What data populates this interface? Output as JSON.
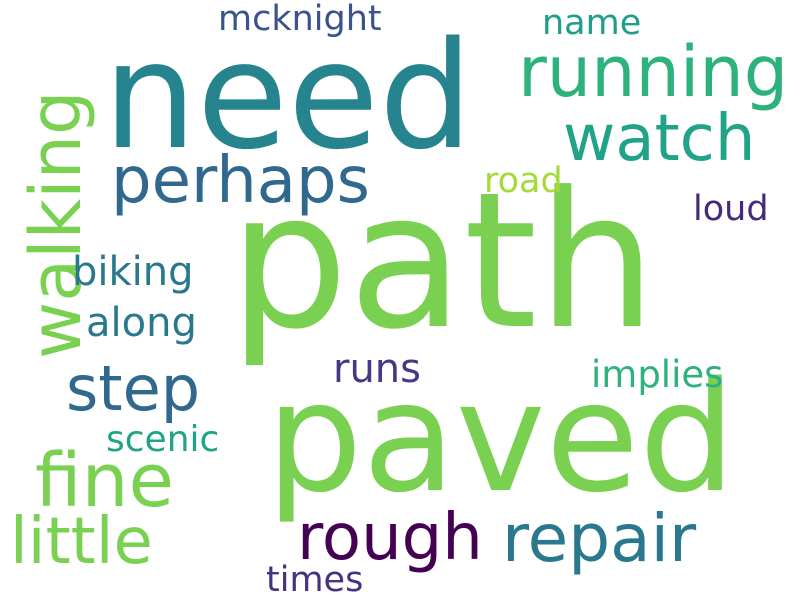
{
  "words": {
    "need": {
      "text": "need",
      "color": "#25848e"
    },
    "path": {
      "text": "path",
      "color": "#7ad151"
    },
    "paved": {
      "text": "paved",
      "color": "#7ad151"
    },
    "running": {
      "text": "running",
      "color": "#2db27d"
    },
    "walking": {
      "text": "walking",
      "color": "#7ad151"
    },
    "watch": {
      "text": "watch",
      "color": "#20a386"
    },
    "perhaps": {
      "text": "perhaps",
      "color": "#31688e"
    },
    "mcknight": {
      "text": "mcknight",
      "color": "#3b528b"
    },
    "name": {
      "text": "name",
      "color": "#1f9e89"
    },
    "road": {
      "text": "road",
      "color": "#a5db36"
    },
    "loud": {
      "text": "loud",
      "color": "#482878"
    },
    "biking": {
      "text": "biking",
      "color": "#2a788e"
    },
    "along": {
      "text": "along",
      "color": "#2a788e"
    },
    "step": {
      "text": "step",
      "color": "#31688e"
    },
    "runs": {
      "text": "runs",
      "color": "#443983"
    },
    "implies": {
      "text": "implies",
      "color": "#2db27d"
    },
    "fine": {
      "text": "fine",
      "color": "#7ad151"
    },
    "scenic": {
      "text": "scenic",
      "color": "#20a386"
    },
    "little": {
      "text": "little",
      "color": "#7ad151"
    },
    "rough": {
      "text": "rough",
      "color": "#440154"
    },
    "repair": {
      "text": "repair",
      "color": "#2a788e"
    },
    "times": {
      "text": "times",
      "color": "#46327e"
    }
  }
}
